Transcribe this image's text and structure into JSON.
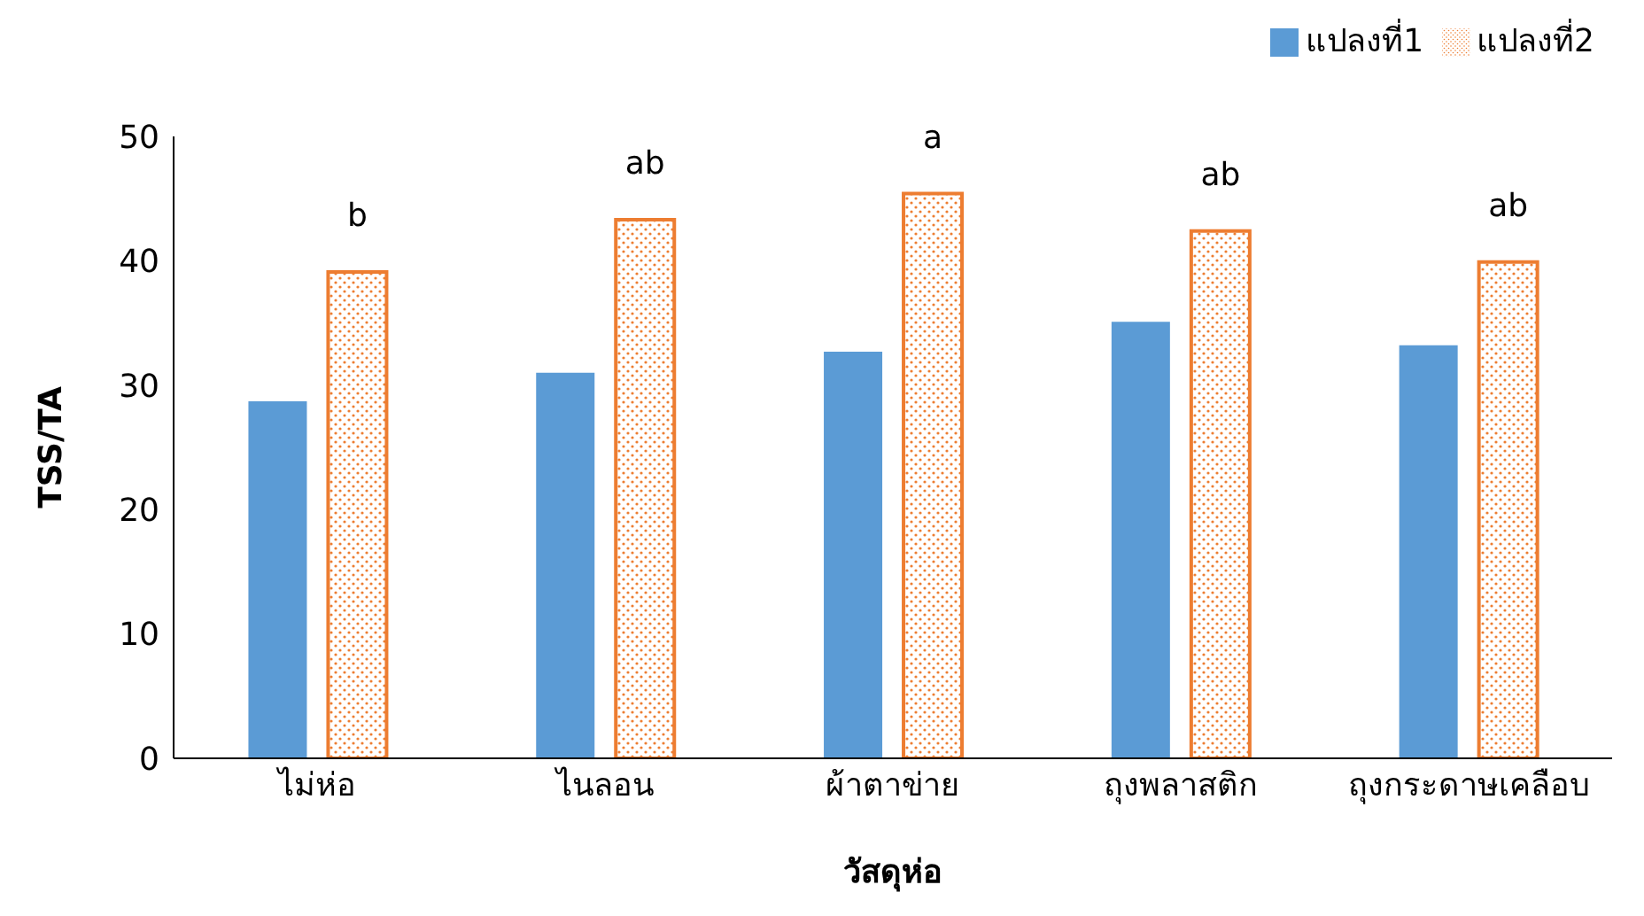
{
  "chart_data": {
    "type": "bar",
    "xlabel": "วัสดุห่อ",
    "ylabel": "TSS/TA",
    "categories": [
      "ไม่ห่อ",
      "ไนลอน",
      "ผ้าตาข่าย",
      "ถุงพลาสติก",
      "ถุงกระดาษเคลือบ"
    ],
    "series": [
      {
        "name": "แปลงที่1",
        "color": "#5b9bd5",
        "values": [
          28.7,
          31.0,
          32.7,
          35.1,
          33.2
        ]
      },
      {
        "name": "แปลงที่2",
        "color": "#ed7d31",
        "values": [
          39.1,
          43.3,
          45.4,
          42.4,
          39.9
        ]
      }
    ],
    "ylim": [
      0,
      50
    ],
    "yticks": [
      0,
      10,
      20,
      30,
      40,
      50
    ],
    "grid": false,
    "legend": "top right",
    "annotations": [
      "b",
      "ab",
      "a",
      "ab",
      "ab"
    ]
  }
}
